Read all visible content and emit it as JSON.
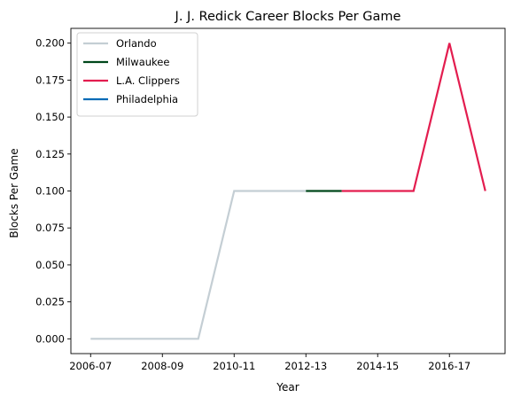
{
  "chart_data": {
    "type": "line",
    "title": "J. J. Redick Career Blocks Per Game",
    "xlabel": "Year",
    "ylabel": "Blocks Per Game",
    "x_ticks": [
      "2006-07",
      "2008-09",
      "2010-11",
      "2012-13",
      "2014-15",
      "2016-17"
    ],
    "y_ticks": [
      "0.000",
      "0.025",
      "0.050",
      "0.075",
      "0.100",
      "0.125",
      "0.150",
      "0.175",
      "0.200"
    ],
    "x_categories": [
      "2006-07",
      "2007-08",
      "2008-09",
      "2009-10",
      "2010-11",
      "2011-12",
      "2012-13",
      "2013-14",
      "2014-15",
      "2015-16",
      "2016-17",
      "2017-18"
    ],
    "ylim": [
      -0.01,
      0.21
    ],
    "grid": false,
    "legend_position": "top-left",
    "series": [
      {
        "name": "Orlando",
        "color": "#c4ced4",
        "x": [
          "2006-07",
          "2007-08",
          "2008-09",
          "2009-10",
          "2010-11",
          "2011-12",
          "2012-13"
        ],
        "y": [
          0.0,
          0.0,
          0.0,
          0.0,
          0.1,
          0.1,
          0.1
        ]
      },
      {
        "name": "Milwaukee",
        "color": "#00471b",
        "x": [
          "2012-13",
          "2013-14"
        ],
        "y": [
          0.1,
          0.1
        ]
      },
      {
        "name": "L.A. Clippers",
        "color": "#e31d4f",
        "x": [
          "2013-14",
          "2014-15",
          "2015-16",
          "2016-17",
          "2017-18"
        ],
        "y": [
          0.1,
          0.1,
          0.1,
          0.2,
          0.1
        ]
      },
      {
        "name": "Philadelphia",
        "color": "#006bb6",
        "x": [],
        "y": []
      }
    ]
  }
}
